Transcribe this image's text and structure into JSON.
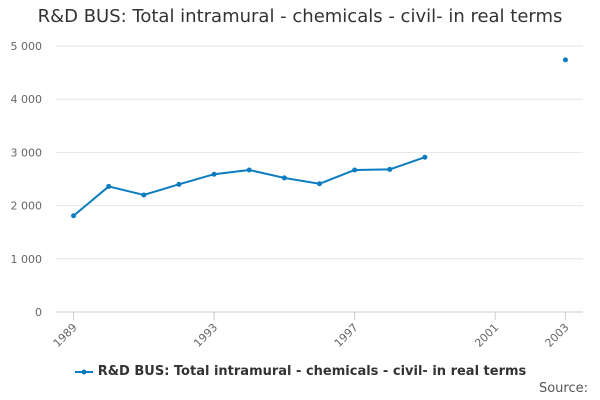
{
  "chart_data": {
    "type": "line",
    "title": "R&D BUS: Total intramural - chemicals - civil- in real terms",
    "xlabel": "",
    "ylabel": "",
    "x": [
      1989,
      1990,
      1991,
      1992,
      1993,
      1994,
      1995,
      1996,
      1997,
      1998,
      1999,
      2003
    ],
    "series": [
      {
        "name": "R&D BUS: Total intramural - chemicals - civil- in real terms",
        "values": [
          1810,
          2360,
          2200,
          2400,
          2590,
          2670,
          2520,
          2410,
          2670,
          2680,
          2910,
          4740
        ],
        "gap_before_index": 11
      }
    ],
    "xlim": [
      1988.5,
      2003.5
    ],
    "ylim": [
      0,
      5000
    ],
    "x_ticks": [
      1989,
      1993,
      1997,
      2001,
      2003
    ],
    "y_ticks": [
      0,
      1000,
      2000,
      3000,
      4000,
      5000
    ],
    "y_tick_labels": [
      "0",
      "1 000",
      "2 000",
      "3 000",
      "4 000",
      "5 000"
    ],
    "grid": true,
    "legend_position": "bottom",
    "line_color": "#0b7cbf"
  },
  "footer": {
    "source_label": "Source:"
  }
}
